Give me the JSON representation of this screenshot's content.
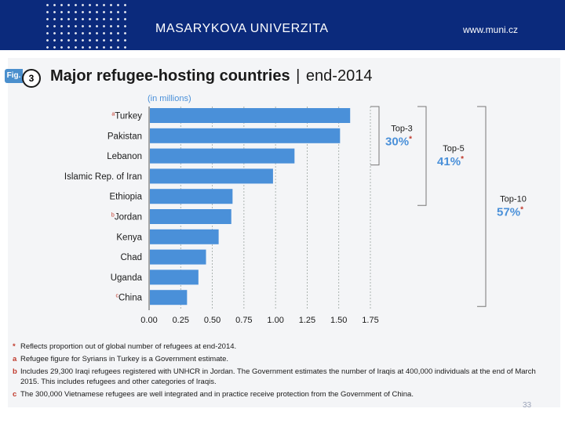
{
  "header": {
    "university": "MASARYKOVA UNIVERZITA",
    "website": "www.muni.cz"
  },
  "figure": {
    "tag": "Fig.",
    "number": "3",
    "title_bold": "Major refugee-hosting countries",
    "title_sep": "|",
    "title_year": "end-2014",
    "unit_label": "(in millions)"
  },
  "chart_data": {
    "type": "bar",
    "orientation": "horizontal",
    "title": "Major refugee-hosting countries | end-2014",
    "xlabel": "(in millions)",
    "categories": [
      "Turkey",
      "Pakistan",
      "Lebanon",
      "Islamic Rep. of Iran",
      "Ethiopia",
      "Jordan",
      "Kenya",
      "Chad",
      "Uganda",
      "China"
    ],
    "category_markers": [
      "a",
      "",
      "",
      "",
      "",
      "b",
      "",
      "",
      "",
      "c"
    ],
    "values": [
      1.59,
      1.51,
      1.15,
      0.98,
      0.66,
      0.65,
      0.55,
      0.45,
      0.39,
      0.3
    ],
    "xlim": [
      0,
      1.75
    ],
    "xticks": [
      "0.00",
      "0.25",
      "0.50",
      "0.75",
      "1.00",
      "1.25",
      "1.50",
      "1.75"
    ],
    "grid": true,
    "bar_color": "#4a90d9",
    "brackets": [
      {
        "label": "Top-3",
        "value": "30%",
        "star": "*",
        "first": 0,
        "last": 2
      },
      {
        "label": "Top-5",
        "value": "41%",
        "star": "*",
        "first": 0,
        "last": 4
      },
      {
        "label": "Top-10",
        "value": "57%",
        "star": "*",
        "first": 0,
        "last": 9
      }
    ]
  },
  "notes": [
    {
      "mark": "*",
      "text": "Reflects proportion out of global number of refugees at end-2014."
    },
    {
      "mark": "a",
      "text": "Refugee figure for Syrians in Turkey is a Government estimate."
    },
    {
      "mark": "b",
      "text": "Includes 29,300 Iraqi refugees registered with UNHCR in Jordan. The Government estimates the number of Iraqis at 400,000 individuals at the end of March 2015. This includes refugees and other categories of Iraqis."
    },
    {
      "mark": "c",
      "text": "The 300,000 Vietnamese refugees are well integrated and in practice receive protection from the Government of China."
    }
  ],
  "page_number": "33",
  "colors": {
    "header": "#0b2a7c",
    "accent": "#4a90d9",
    "marker": "#c0392b"
  }
}
